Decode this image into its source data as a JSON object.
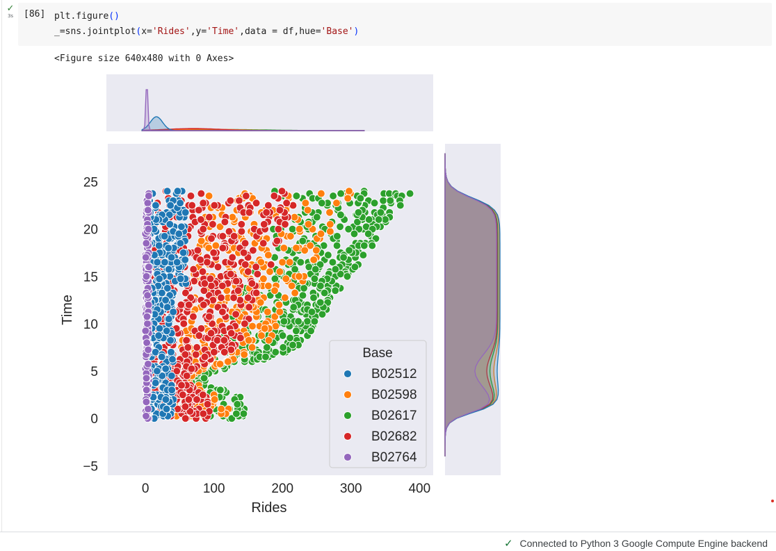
{
  "cell": {
    "status_icon": "check-icon",
    "run_time": "3s",
    "execution_count": "[86]",
    "code": [
      [
        {
          "t": "plt.figure",
          "c": "plain"
        },
        {
          "t": "()",
          "c": "paren"
        }
      ],
      [
        {
          "t": "_=sns.jointplot",
          "c": "plain"
        },
        {
          "t": "(",
          "c": "paren"
        },
        {
          "t": "x=",
          "c": "plain"
        },
        {
          "t": "'Rides'",
          "c": "str"
        },
        {
          "t": ",y=",
          "c": "plain"
        },
        {
          "t": "'Time'",
          "c": "str"
        },
        {
          "t": ",data = df,hue=",
          "c": "plain"
        },
        {
          "t": "'Base'",
          "c": "str"
        },
        {
          "t": ")",
          "c": "paren"
        }
      ]
    ],
    "output_text": "<Figure size 640x480 with 0 Axes>"
  },
  "colors": {
    "B02512": "#1f77b4",
    "B02598": "#ff7f0e",
    "B02617": "#2ca02c",
    "B02682": "#d62728",
    "B02764": "#9467bd",
    "axes_bg": "#eaeaf2"
  },
  "chart_data": {
    "type": "scatter",
    "xlabel": "Rides",
    "ylabel": "Time",
    "xlim": [
      -55,
      420
    ],
    "ylim": [
      -6,
      29
    ],
    "x_ticks": [
      "0",
      "100",
      "200",
      "300",
      "400"
    ],
    "y_ticks": [
      "25",
      "20",
      "15",
      "10",
      "5",
      "0",
      "−5"
    ],
    "legend": {
      "title": "Base",
      "position": "lower-right",
      "entries": [
        "B02512",
        "B02598",
        "B02617",
        "B02682",
        "B02764"
      ]
    },
    "series_extents": [
      {
        "name": "B02764",
        "x_min": 0,
        "x_max": 5,
        "y_min": 0,
        "y_max": 24
      },
      {
        "name": "B02512",
        "x_min": 2,
        "x_max": 55,
        "y_min": 0,
        "y_max": 24
      },
      {
        "name": "B02598",
        "x_min": 5,
        "x_max": 290,
        "y_min": 0,
        "y_max": 24
      },
      {
        "name": "B02682",
        "x_min": 5,
        "x_max": 190,
        "y_min": 0,
        "y_max": 24
      },
      {
        "name": "B02617",
        "x_min": 5,
        "x_max": 355,
        "y_min": 0,
        "y_max": 24
      }
    ],
    "marginal_x": "KDE of Rides by Base (peaks near x≈2 for B02764, x≈15 for B02512)",
    "marginal_y": "KDE of Time by Base"
  },
  "status_bar": {
    "text": "Connected to Python 3 Google Compute Engine backend",
    "icon": "check-icon"
  }
}
